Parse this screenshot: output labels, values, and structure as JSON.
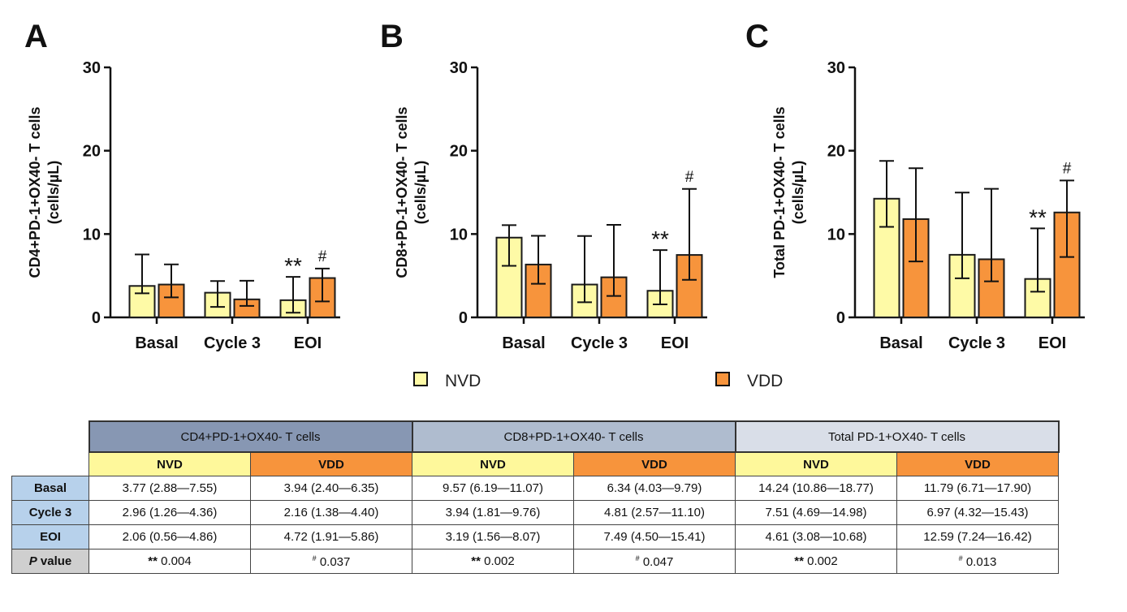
{
  "chart_data": [
    {
      "type": "bar",
      "panel": "A",
      "title": "",
      "ylabel_line1": "CD4+PD-1+OX40- T cells",
      "ylabel_line2": "(cells/µL)",
      "xlabel": "",
      "categories": [
        "Basal",
        "Cycle 3",
        "EOI"
      ],
      "ylim": [
        0,
        30
      ],
      "yticks": [
        "0",
        "10",
        "20",
        "30"
      ],
      "series": [
        {
          "name": "NVD",
          "values": [
            3.77,
            2.96,
            2.06
          ],
          "err_low": [
            2.88,
            1.26,
            0.56
          ],
          "err_high": [
            7.55,
            4.36,
            4.86
          ]
        },
        {
          "name": "VDD",
          "values": [
            3.94,
            2.16,
            4.72
          ],
          "err_low": [
            2.4,
            1.38,
            1.91
          ],
          "err_high": [
            6.35,
            4.4,
            5.86
          ]
        }
      ],
      "annotations": [
        {
          "text": "**",
          "category": "EOI",
          "series": "NVD"
        },
        {
          "text": "#",
          "category": "EOI",
          "series": "VDD"
        }
      ]
    },
    {
      "type": "bar",
      "panel": "B",
      "title": "",
      "ylabel_line1": "CD8+PD-1+OX40- T cells",
      "ylabel_line2": "(cells/µL)",
      "xlabel": "",
      "categories": [
        "Basal",
        "Cycle 3",
        "EOI"
      ],
      "ylim": [
        0,
        30
      ],
      "yticks": [
        "0",
        "10",
        "20",
        "30"
      ],
      "series": [
        {
          "name": "NVD",
          "values": [
            9.57,
            3.94,
            3.19
          ],
          "err_low": [
            6.19,
            1.81,
            1.56
          ],
          "err_high": [
            11.07,
            9.76,
            8.07
          ]
        },
        {
          "name": "VDD",
          "values": [
            6.34,
            4.81,
            7.49
          ],
          "err_low": [
            4.03,
            2.57,
            4.5
          ],
          "err_high": [
            9.79,
            11.1,
            15.41
          ]
        }
      ],
      "annotations": [
        {
          "text": "**",
          "category": "EOI",
          "series": "NVD"
        },
        {
          "text": "#",
          "category": "EOI",
          "series": "VDD"
        }
      ]
    },
    {
      "type": "bar",
      "panel": "C",
      "title": "",
      "ylabel_line1": "Total PD-1+OX40- T cells",
      "ylabel_line2": "(cells/µL)",
      "xlabel": "",
      "categories": [
        "Basal",
        "Cycle 3",
        "EOI"
      ],
      "ylim": [
        0,
        30
      ],
      "yticks": [
        "0",
        "10",
        "20",
        "30"
      ],
      "series": [
        {
          "name": "NVD",
          "values": [
            14.24,
            7.51,
            4.61
          ],
          "err_low": [
            10.86,
            4.69,
            3.08
          ],
          "err_high": [
            18.77,
            14.98,
            10.68
          ]
        },
        {
          "name": "VDD",
          "values": [
            11.79,
            6.97,
            12.59
          ],
          "err_low": [
            6.71,
            4.32,
            7.24
          ],
          "err_high": [
            17.9,
            15.43,
            16.42
          ]
        }
      ],
      "annotations": [
        {
          "text": "**",
          "category": "EOI",
          "series": "NVD"
        },
        {
          "text": "#",
          "category": "EOI",
          "series": "VDD"
        }
      ]
    }
  ],
  "legend": [
    {
      "name": "NVD",
      "color": "#fefaa6"
    },
    {
      "name": "VDD",
      "color": "#f7943c"
    }
  ],
  "colors": {
    "nvd": "#fefaa6",
    "vdd": "#f7943c",
    "stroke": "#1a1a1a"
  },
  "table": {
    "groups": [
      "CD4+PD-1+OX40- T cells",
      "CD8+PD-1+OX40- T cells",
      "Total PD-1+OX40- T cells"
    ],
    "subheaders": [
      "NVD",
      "VDD",
      "NVD",
      "VDD",
      "NVD",
      "VDD"
    ],
    "rows": [
      {
        "label": "Basal",
        "cells": [
          "3.77 (2.88—7.55)",
          "3.94 (2.40—6.35)",
          "9.57 (6.19—11.07)",
          "6.34 (4.03—9.79)",
          "14.24 (10.86—18.77)",
          "11.79 (6.71—17.90)"
        ]
      },
      {
        "label": "Cycle 3",
        "cells": [
          "2.96 (1.26—4.36)",
          "2.16 (1.38—4.40)",
          "3.94 (1.81—9.76)",
          "4.81 (2.57—11.10)",
          "7.51 (4.69—14.98)",
          "6.97 (4.32—15.43)"
        ]
      },
      {
        "label": "EOI",
        "cells": [
          "2.06 (0.56—4.86)",
          "4.72 (1.91—5.86)",
          "3.19 (1.56—8.07)",
          "7.49 (4.50—15.41)",
          "4.61 (3.08—10.68)",
          "12.59 (7.24—16.42)"
        ]
      }
    ],
    "pvalue": {
      "label_italic": "P",
      "label_rest": " value",
      "cells": [
        {
          "mark": "**",
          "value": "0.004"
        },
        {
          "mark": "#",
          "value": "0.037"
        },
        {
          "mark": "**",
          "value": "0.002"
        },
        {
          "mark": "#",
          "value": "0.047"
        },
        {
          "mark": "**",
          "value": "0.002"
        },
        {
          "mark": "#",
          "value": "0.013"
        }
      ]
    }
  }
}
